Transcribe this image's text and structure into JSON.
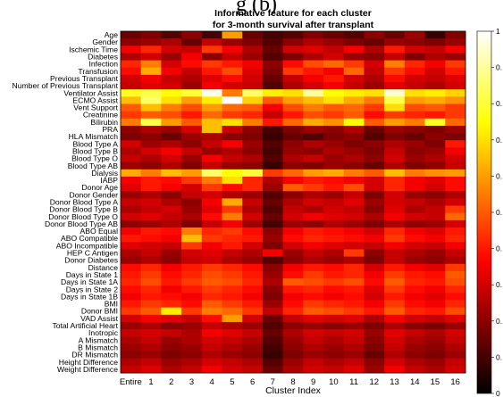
{
  "overflow_title": "g (b)",
  "chart_data": {
    "type": "heatmap",
    "title": "Informative feature for each cluster",
    "subtitle": "for 3-month survival after transplant",
    "xlabel": "Cluster Index",
    "ylabel": "",
    "x_categories": [
      "Entire",
      "1",
      "2",
      "3",
      "4",
      "5",
      "6",
      "7",
      "8",
      "9",
      "10",
      "11",
      "12",
      "13",
      "14",
      "15",
      "16"
    ],
    "y_categories": [
      "Age",
      "Gender",
      "Ischemic Time",
      "Diabetes",
      "Infection",
      "Transfusion",
      "Previous Transplant",
      "Number of Previous Transplant",
      "Ventilator Assist",
      "ECMO Assist",
      "Vent Support",
      "Creatinine",
      "Bilirubin",
      "PRA",
      "HLA Mismatch",
      "Blood Type A",
      "Blood Type B",
      "Blood Type O",
      "Blood Type AB",
      "Dialysis",
      "IABP",
      "Donor Age",
      "Donor Gender",
      "Donor Blood Type A",
      "Donor Blood Type B",
      "Donor Blood Type O",
      "Donor Blood Type AB",
      "ABO Equal",
      "ABO Compatible",
      "ABO Incompatible",
      "HEP C Antigen",
      "Donor Diabetes",
      "Distance",
      "Days in State 1",
      "Days in State 1A",
      "Days in State 2",
      "Days in State 1B",
      "BMI",
      "Donor BMI",
      "VAD Assist",
      "Total Artificial Heart",
      "Inotropic",
      "A Mismatch",
      "B Mismatch",
      "DR Mismatch",
      "Height Difference",
      "Weight Difference"
    ],
    "colorbar_ticks": [
      "1",
      "0.",
      "0.",
      "0.",
      "0.",
      "0.",
      "0.",
      "0.",
      "0.",
      "0.",
      "0"
    ],
    "colormap": "hot",
    "value_range": [
      0,
      1
    ],
    "values": [
      [
        0.15,
        0.18,
        0.12,
        0.2,
        0.1,
        0.6,
        0.15,
        0.1,
        0.12,
        0.18,
        0.15,
        0.12,
        0.2,
        0.15,
        0.22,
        0.08,
        0.18
      ],
      [
        0.2,
        0.22,
        0.25,
        0.15,
        0.28,
        0.22,
        0.18,
        0.12,
        0.2,
        0.25,
        0.22,
        0.18,
        0.15,
        0.22,
        0.2,
        0.18,
        0.22
      ],
      [
        0.35,
        0.42,
        0.3,
        0.28,
        0.45,
        0.35,
        0.25,
        0.15,
        0.3,
        0.32,
        0.28,
        0.35,
        0.25,
        0.4,
        0.3,
        0.28,
        0.35
      ],
      [
        0.25,
        0.3,
        0.22,
        0.35,
        0.2,
        0.28,
        0.22,
        0.12,
        0.18,
        0.25,
        0.3,
        0.22,
        0.2,
        0.28,
        0.18,
        0.25,
        0.22
      ],
      [
        0.42,
        0.55,
        0.3,
        0.38,
        0.45,
        0.4,
        0.35,
        0.2,
        0.38,
        0.48,
        0.52,
        0.45,
        0.3,
        0.55,
        0.42,
        0.35,
        0.45
      ],
      [
        0.38,
        0.62,
        0.35,
        0.28,
        0.4,
        0.48,
        0.32,
        0.18,
        0.45,
        0.4,
        0.35,
        0.52,
        0.28,
        0.45,
        0.38,
        0.3,
        0.4
      ],
      [
        0.3,
        0.35,
        0.28,
        0.25,
        0.32,
        0.38,
        0.3,
        0.15,
        0.28,
        0.35,
        0.4,
        0.3,
        0.25,
        0.38,
        0.3,
        0.28,
        0.32
      ],
      [
        0.28,
        0.32,
        0.3,
        0.22,
        0.35,
        0.3,
        0.28,
        0.12,
        0.25,
        0.3,
        0.35,
        0.28,
        0.22,
        0.32,
        0.28,
        0.25,
        0.3
      ],
      [
        0.78,
        0.82,
        0.75,
        0.8,
        0.98,
        0.55,
        0.85,
        0.72,
        0.7,
        0.9,
        0.75,
        0.72,
        0.7,
        0.95,
        0.7,
        0.72,
        0.68
      ],
      [
        0.65,
        0.85,
        0.7,
        0.6,
        0.72,
        1.0,
        0.68,
        0.5,
        0.6,
        0.65,
        0.7,
        0.62,
        0.55,
        0.82,
        0.6,
        0.62,
        0.58
      ],
      [
        0.5,
        0.65,
        0.55,
        0.48,
        0.6,
        0.52,
        0.5,
        0.35,
        0.48,
        0.55,
        0.5,
        0.52,
        0.45,
        0.7,
        0.48,
        0.5,
        0.45
      ],
      [
        0.45,
        0.5,
        0.48,
        0.4,
        0.52,
        0.45,
        0.42,
        0.28,
        0.4,
        0.48,
        0.45,
        0.5,
        0.38,
        0.45,
        0.42,
        0.4,
        0.45
      ],
      [
        0.55,
        0.82,
        0.6,
        0.5,
        0.65,
        0.7,
        0.55,
        0.4,
        0.52,
        0.62,
        0.58,
        0.75,
        0.5,
        0.6,
        0.55,
        0.78,
        0.52
      ],
      [
        0.2,
        0.25,
        0.22,
        0.3,
        0.65,
        0.28,
        0.2,
        0.1,
        0.18,
        0.22,
        0.2,
        0.25,
        0.15,
        0.22,
        0.2,
        0.18,
        0.22
      ],
      [
        0.18,
        0.2,
        0.15,
        0.22,
        0.25,
        0.2,
        0.18,
        0.08,
        0.15,
        0.12,
        0.18,
        0.2,
        0.12,
        0.18,
        0.15,
        0.2,
        0.18
      ],
      [
        0.3,
        0.22,
        0.25,
        0.2,
        0.28,
        0.35,
        0.22,
        0.12,
        0.2,
        0.25,
        0.22,
        0.18,
        0.2,
        0.25,
        0.22,
        0.18,
        0.4
      ],
      [
        0.25,
        0.3,
        0.35,
        0.28,
        0.22,
        0.25,
        0.2,
        0.1,
        0.22,
        0.2,
        0.25,
        0.22,
        0.18,
        0.28,
        0.2,
        0.22,
        0.35
      ],
      [
        0.28,
        0.25,
        0.3,
        0.22,
        0.35,
        0.28,
        0.25,
        0.12,
        0.25,
        0.28,
        0.22,
        0.25,
        0.2,
        0.3,
        0.22,
        0.25,
        0.3
      ],
      [
        0.22,
        0.2,
        0.25,
        0.18,
        0.28,
        0.22,
        0.2,
        0.08,
        0.2,
        0.18,
        0.22,
        0.2,
        0.15,
        0.25,
        0.18,
        0.2,
        0.28
      ],
      [
        0.62,
        0.55,
        0.65,
        0.6,
        0.85,
        0.75,
        0.8,
        0.45,
        0.52,
        0.6,
        0.62,
        0.55,
        0.5,
        0.65,
        0.55,
        0.58,
        0.6
      ],
      [
        0.35,
        0.4,
        0.38,
        0.45,
        0.55,
        0.7,
        0.42,
        0.25,
        0.35,
        0.4,
        0.38,
        0.35,
        0.3,
        0.42,
        0.35,
        0.32,
        0.38
      ],
      [
        0.32,
        0.4,
        0.35,
        0.3,
        0.45,
        0.38,
        0.42,
        0.22,
        0.5,
        0.45,
        0.4,
        0.48,
        0.3,
        0.42,
        0.35,
        0.3,
        0.38
      ],
      [
        0.22,
        0.25,
        0.2,
        0.28,
        0.3,
        0.25,
        0.22,
        0.12,
        0.2,
        0.25,
        0.22,
        0.28,
        0.18,
        0.3,
        0.22,
        0.2,
        0.25
      ],
      [
        0.28,
        0.3,
        0.25,
        0.2,
        0.35,
        0.62,
        0.28,
        0.15,
        0.25,
        0.3,
        0.28,
        0.32,
        0.22,
        0.3,
        0.28,
        0.25,
        0.3
      ],
      [
        0.25,
        0.28,
        0.3,
        0.22,
        0.32,
        0.45,
        0.25,
        0.12,
        0.28,
        0.25,
        0.3,
        0.28,
        0.2,
        0.32,
        0.25,
        0.28,
        0.45
      ],
      [
        0.3,
        0.32,
        0.28,
        0.25,
        0.38,
        0.55,
        0.3,
        0.15,
        0.3,
        0.35,
        0.32,
        0.3,
        0.25,
        0.35,
        0.3,
        0.28,
        0.52
      ],
      [
        0.2,
        0.22,
        0.25,
        0.18,
        0.28,
        0.35,
        0.22,
        0.1,
        0.22,
        0.2,
        0.25,
        0.22,
        0.18,
        0.25,
        0.2,
        0.22,
        0.3
      ],
      [
        0.35,
        0.4,
        0.38,
        0.55,
        0.42,
        0.45,
        0.38,
        0.2,
        0.35,
        0.4,
        0.38,
        0.35,
        0.3,
        0.42,
        0.35,
        0.32,
        0.4
      ],
      [
        0.4,
        0.38,
        0.35,
        0.65,
        0.45,
        0.42,
        0.4,
        0.22,
        0.38,
        0.42,
        0.4,
        0.38,
        0.35,
        0.45,
        0.38,
        0.35,
        0.42
      ],
      [
        0.32,
        0.3,
        0.28,
        0.45,
        0.35,
        0.4,
        0.3,
        0.18,
        0.3,
        0.35,
        0.32,
        0.3,
        0.28,
        0.35,
        0.3,
        0.28,
        0.35
      ],
      [
        0.25,
        0.28,
        0.22,
        0.3,
        0.32,
        0.28,
        0.25,
        0.35,
        0.22,
        0.28,
        0.25,
        0.45,
        0.2,
        0.28,
        0.25,
        0.22,
        0.28
      ],
      [
        0.22,
        0.25,
        0.2,
        0.28,
        0.3,
        0.25,
        0.22,
        0.12,
        0.2,
        0.25,
        0.22,
        0.25,
        0.18,
        0.28,
        0.22,
        0.2,
        0.25
      ],
      [
        0.38,
        0.42,
        0.35,
        0.4,
        0.45,
        0.42,
        0.38,
        0.2,
        0.35,
        0.4,
        0.38,
        0.42,
        0.3,
        0.4,
        0.35,
        0.32,
        0.45
      ],
      [
        0.4,
        0.45,
        0.38,
        0.42,
        0.48,
        0.45,
        0.4,
        0.22,
        0.38,
        0.45,
        0.4,
        0.42,
        0.35,
        0.45,
        0.4,
        0.38,
        0.5
      ],
      [
        0.42,
        0.48,
        0.4,
        0.45,
        0.5,
        0.48,
        0.42,
        0.25,
        0.5,
        0.48,
        0.45,
        0.48,
        0.38,
        0.5,
        0.42,
        0.4,
        0.48
      ],
      [
        0.38,
        0.42,
        0.35,
        0.4,
        0.45,
        0.42,
        0.38,
        0.2,
        0.4,
        0.42,
        0.38,
        0.4,
        0.32,
        0.45,
        0.38,
        0.35,
        0.42
      ],
      [
        0.35,
        0.4,
        0.38,
        0.35,
        0.42,
        0.4,
        0.35,
        0.18,
        0.35,
        0.38,
        0.35,
        0.38,
        0.3,
        0.4,
        0.35,
        0.32,
        0.38
      ],
      [
        0.4,
        0.45,
        0.42,
        0.38,
        0.5,
        0.45,
        0.4,
        0.22,
        0.38,
        0.45,
        0.42,
        0.4,
        0.35,
        0.45,
        0.38,
        0.35,
        0.42
      ],
      [
        0.45,
        0.5,
        0.72,
        0.45,
        0.55,
        0.52,
        0.45,
        0.28,
        0.42,
        0.5,
        0.48,
        0.45,
        0.4,
        0.5,
        0.42,
        0.4,
        0.48
      ],
      [
        0.3,
        0.35,
        0.32,
        0.28,
        0.38,
        0.6,
        0.3,
        0.15,
        0.28,
        0.32,
        0.3,
        0.32,
        0.25,
        0.35,
        0.3,
        0.28,
        0.32
      ],
      [
        0.22,
        0.25,
        0.2,
        0.22,
        0.28,
        0.25,
        0.22,
        0.12,
        0.2,
        0.22,
        0.2,
        0.22,
        0.18,
        0.25,
        0.2,
        0.18,
        0.22
      ],
      [
        0.28,
        0.3,
        0.28,
        0.25,
        0.35,
        0.32,
        0.28,
        0.15,
        0.25,
        0.3,
        0.28,
        0.3,
        0.22,
        0.32,
        0.28,
        0.25,
        0.3
      ],
      [
        0.25,
        0.28,
        0.22,
        0.25,
        0.3,
        0.28,
        0.25,
        0.12,
        0.22,
        0.28,
        0.25,
        0.28,
        0.2,
        0.3,
        0.25,
        0.22,
        0.28
      ],
      [
        0.22,
        0.25,
        0.2,
        0.22,
        0.28,
        0.25,
        0.22,
        0.1,
        0.2,
        0.25,
        0.22,
        0.25,
        0.18,
        0.28,
        0.22,
        0.2,
        0.25
      ],
      [
        0.2,
        0.22,
        0.18,
        0.2,
        0.25,
        0.22,
        0.2,
        0.08,
        0.18,
        0.22,
        0.2,
        0.22,
        0.15,
        0.25,
        0.2,
        0.18,
        0.22
      ],
      [
        0.25,
        0.28,
        0.22,
        0.25,
        0.3,
        0.28,
        0.25,
        0.12,
        0.22,
        0.28,
        0.25,
        0.28,
        0.2,
        0.3,
        0.25,
        0.22,
        0.28
      ],
      [
        0.28,
        0.32,
        0.25,
        0.28,
        0.35,
        0.3,
        0.28,
        0.15,
        0.25,
        0.3,
        0.28,
        0.32,
        0.22,
        0.35,
        0.28,
        0.25,
        0.3
      ]
    ]
  }
}
